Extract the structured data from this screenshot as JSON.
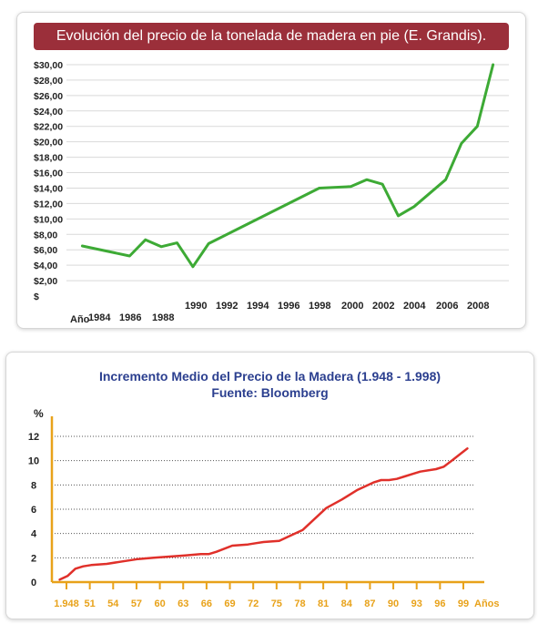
{
  "chart_data": [
    {
      "type": "line",
      "title": "Evolución del precio de la tonelada de madera en pie (E. Grandis).",
      "xlabel": "Año",
      "ylabel": "",
      "ylim": [
        0,
        30
      ],
      "y_ticks": [
        "$",
        "$2,00",
        "$4,00",
        "$6,00",
        "$8,00",
        "$10,00",
        "$12,00",
        "$14,00",
        "$16,00",
        "$18,00",
        "$20,00",
        "$22,00",
        "$24,00",
        "$26,00",
        "$28,00",
        "$30,00"
      ],
      "x_tick_labels": [
        "1984",
        "1986",
        "1988",
        "1990",
        "1992",
        "1994",
        "1996",
        "1998",
        "2000",
        "2002",
        "2004",
        "2006",
        "2008"
      ],
      "grid": true,
      "color": "#3daa35",
      "series": [
        {
          "name": "",
          "x": [
            1983,
            1986,
            1987,
            1988,
            1989,
            1990,
            1991,
            1998,
            2000,
            2001,
            2002,
            2003,
            2004,
            2006,
            2007,
            2008,
            2009
          ],
          "y": [
            6.5,
            5.2,
            7.3,
            6.4,
            6.9,
            3.8,
            6.8,
            14.0,
            14.2,
            15.1,
            14.5,
            10.4,
            11.6,
            15.1,
            19.8,
            22.0,
            30.0
          ]
        }
      ]
    },
    {
      "type": "line",
      "title": "Incremento Medio del Precio de la Madera (1.948 - 1.998)",
      "subtitle": "Fuente: Bloomberg",
      "xlabel": "Años",
      "ylabel": "%",
      "ylim": [
        0,
        12
      ],
      "y_ticks": [
        "0",
        "2",
        "4",
        "6",
        "8",
        "10",
        "12"
      ],
      "x_tick_labels": [
        "1.948",
        "51",
        "54",
        "57",
        "60",
        "63",
        "66",
        "69",
        "72",
        "75",
        "78",
        "81",
        "84",
        "87",
        "90",
        "93",
        "96",
        "99"
      ],
      "grid": true,
      "color": "#e0302a",
      "axis_label_color": "#e8a21a",
      "series": [
        {
          "name": "",
          "x": [
            1947,
            1948,
            1949,
            1950,
            1951,
            1953,
            1955,
            1957,
            1959,
            1961,
            1963,
            1965,
            1966,
            1967,
            1969,
            1971,
            1972,
            1973,
            1975,
            1976,
            1977,
            1978,
            1979,
            1980,
            1981,
            1983,
            1985,
            1987,
            1988,
            1989,
            1990,
            1991,
            1992,
            1993,
            1995,
            1996,
            1997,
            1998,
            1999
          ],
          "y": [
            0.2,
            0.5,
            1.1,
            1.3,
            1.4,
            1.5,
            1.7,
            1.9,
            2.0,
            2.1,
            2.2,
            2.3,
            2.3,
            2.5,
            3.0,
            3.1,
            3.2,
            3.3,
            3.4,
            3.7,
            4.0,
            4.3,
            4.9,
            5.5,
            6.1,
            6.8,
            7.6,
            8.2,
            8.4,
            8.4,
            8.5,
            8.7,
            8.9,
            9.1,
            9.3,
            9.5,
            10.0,
            10.5,
            11.0
          ]
        }
      ]
    }
  ]
}
